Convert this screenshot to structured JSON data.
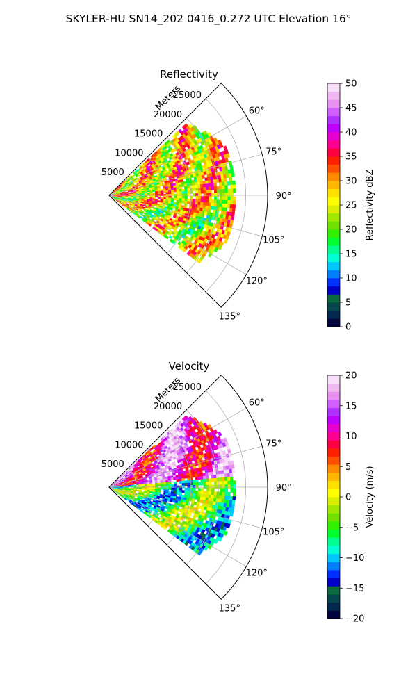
{
  "title": "SKYLER-HU  SN14_202  0416_0.272 UTC Elevation 16°",
  "chart_data": [
    {
      "type": "polar-sector",
      "title": "Reflectivity",
      "rlabel": "Meters",
      "r_ticks": [
        5000,
        10000,
        15000,
        20000,
        25000
      ],
      "r_tick_labels": [
        "5000",
        "10000",
        "15000",
        "20000",
        "25000"
      ],
      "r_max": 29000,
      "theta_range_deg": [
        45,
        135
      ],
      "theta_ticks_deg": [
        60,
        75,
        90,
        105,
        120,
        135
      ],
      "theta_tick_labels": [
        "60°",
        "75°",
        "90°",
        "105°",
        "120°",
        "135°"
      ],
      "colorbar": {
        "label": "Reflectivity dBZ",
        "range": [
          0,
          50
        ],
        "ticks": [
          0,
          5,
          10,
          15,
          20,
          25,
          30,
          35,
          40,
          45,
          50
        ],
        "tick_labels": [
          "0",
          "5",
          "10",
          "15",
          "20",
          "25",
          "30",
          "35",
          "40",
          "45",
          "50"
        ],
        "colors": [
          "#02043d",
          "#022a4f",
          "#05474b",
          "#0c6a40",
          "#0000c8",
          "#0030ff",
          "#0080ff",
          "#00c8ff",
          "#00ffd6",
          "#00ff90",
          "#00ff30",
          "#30f000",
          "#70e000",
          "#a0e800",
          "#d8f000",
          "#ffff00",
          "#ffe000",
          "#ffb800",
          "#ff8a00",
          "#ff5000",
          "#ff2000",
          "#ff0040",
          "#ff0090",
          "#e800d0",
          "#c000ff",
          "#b030ff",
          "#d060ff",
          "#e890f0",
          "#f0b8f0",
          "#f8e0f8"
        ]
      }
    },
    {
      "type": "polar-sector",
      "title": "Velocity",
      "rlabel": "Meters",
      "r_ticks": [
        5000,
        10000,
        15000,
        20000,
        25000
      ],
      "r_tick_labels": [
        "5000",
        "10000",
        "15000",
        "20000",
        "25000"
      ],
      "r_max": 29000,
      "theta_range_deg": [
        45,
        135
      ],
      "theta_ticks_deg": [
        60,
        75,
        90,
        105,
        120,
        135
      ],
      "theta_tick_labels": [
        "60°",
        "75°",
        "90°",
        "105°",
        "120°",
        "135°"
      ],
      "colorbar": {
        "label": "Velocity (m/s)",
        "range": [
          -20,
          20
        ],
        "ticks": [
          -20,
          -15,
          -10,
          -5,
          0,
          5,
          10,
          15,
          20
        ],
        "tick_labels": [
          "−20",
          "−15",
          "−10",
          "−5",
          "0",
          "5",
          "10",
          "15",
          "20"
        ],
        "colors": [
          "#02043d",
          "#022a4f",
          "#05474b",
          "#0c6a40",
          "#0000c8",
          "#0030ff",
          "#0080ff",
          "#00c8ff",
          "#00ffd6",
          "#00ff90",
          "#00ff30",
          "#30f000",
          "#70e000",
          "#a0e800",
          "#d8f000",
          "#ffff00",
          "#ffe000",
          "#ffb800",
          "#ff8a00",
          "#ff5000",
          "#ff2000",
          "#ff0040",
          "#ff0090",
          "#e800d0",
          "#c000ff",
          "#b030ff",
          "#d060ff",
          "#e890f0",
          "#f0b8f0",
          "#f8e0f8"
        ]
      }
    }
  ]
}
